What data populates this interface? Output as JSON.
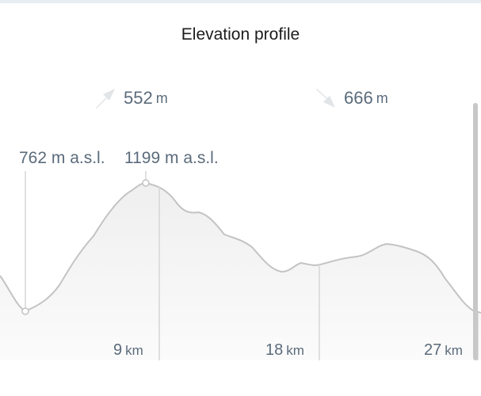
{
  "title": "Elevation profile",
  "ascent": {
    "value": "552",
    "unit": "m",
    "icon": "arrow-up-right-icon"
  },
  "descent": {
    "value": "666",
    "unit": "m",
    "icon": "arrow-down-right-icon"
  },
  "min_elevation_label": "762 m a.s.l.",
  "max_elevation_label": "1199 m a.s.l.",
  "distance_markers": [
    {
      "value": "9",
      "unit": "km"
    },
    {
      "value": "18",
      "unit": "km"
    },
    {
      "value": "27",
      "unit": "km"
    }
  ],
  "colors": {
    "line": "#c3c3c3",
    "fill": "#f2f2f2",
    "text": "#5b6b7b",
    "title": "#1c1c1c"
  }
}
